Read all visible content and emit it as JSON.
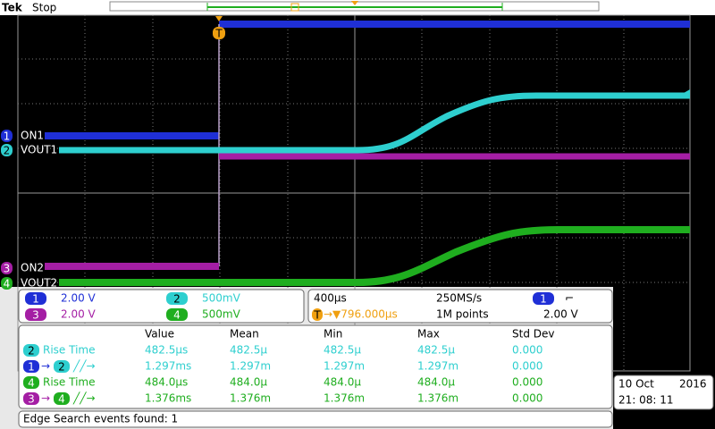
{
  "header": {
    "brand": "Tek",
    "status": "Stop"
  },
  "channel_colors": {
    "1": "#1f2fd6",
    "2": "#2ecfcf",
    "3": "#a41ea4",
    "4": "#1fae1f",
    "T": "#f0a010"
  },
  "trigger_marker": "T",
  "channel_labels": [
    {
      "channel": "1",
      "name": "ON1"
    },
    {
      "channel": "2",
      "name": "VOUT1"
    },
    {
      "channel": "3",
      "name": "ON2"
    },
    {
      "channel": "4",
      "name": "VOUT2"
    }
  ],
  "vertical_settings": [
    {
      "channel": "1",
      "scale": "2.00 V"
    },
    {
      "channel": "2",
      "scale": "500mV"
    },
    {
      "channel": "3",
      "scale": "2.00 V"
    },
    {
      "channel": "4",
      "scale": "500mV"
    }
  ],
  "horizontal": {
    "time_per_div": "400µs",
    "sample_rate": "250MS/s",
    "trigger_source": "1",
    "trigger_slope": "⌐",
    "trigger_position": "→▼796.000µs",
    "record_length": "1M points",
    "trigger_level": "2.00 V"
  },
  "measurements": {
    "columns": [
      "Value",
      "Mean",
      "Min",
      "Max",
      "Std Dev"
    ],
    "rows": [
      {
        "badges": [
          "2"
        ],
        "label": "Rise Time",
        "cells": [
          "482.5µs",
          "482.5µ",
          "482.5µ",
          "482.5µ",
          "0.000"
        ]
      },
      {
        "badges": [
          "1",
          "2"
        ],
        "connector": "→",
        "label": "╱╱→",
        "cells": [
          "1.297ms",
          "1.297m",
          "1.297m",
          "1.297m",
          "0.000"
        ]
      },
      {
        "badges": [
          "4"
        ],
        "label": "Rise Time",
        "cells": [
          "484.0µs",
          "484.0µ",
          "484.0µ",
          "484.0µ",
          "0.000"
        ]
      },
      {
        "badges": [
          "3",
          "4"
        ],
        "connector": "→",
        "label": "╱╱→",
        "cells": [
          "1.376ms",
          "1.376m",
          "1.376m",
          "1.376m",
          "0.000"
        ]
      }
    ]
  },
  "datetime": {
    "date": "10 Oct",
    "year": "2016",
    "time": "21: 08: 11"
  },
  "status_bar": "Edge Search events found: 1"
}
